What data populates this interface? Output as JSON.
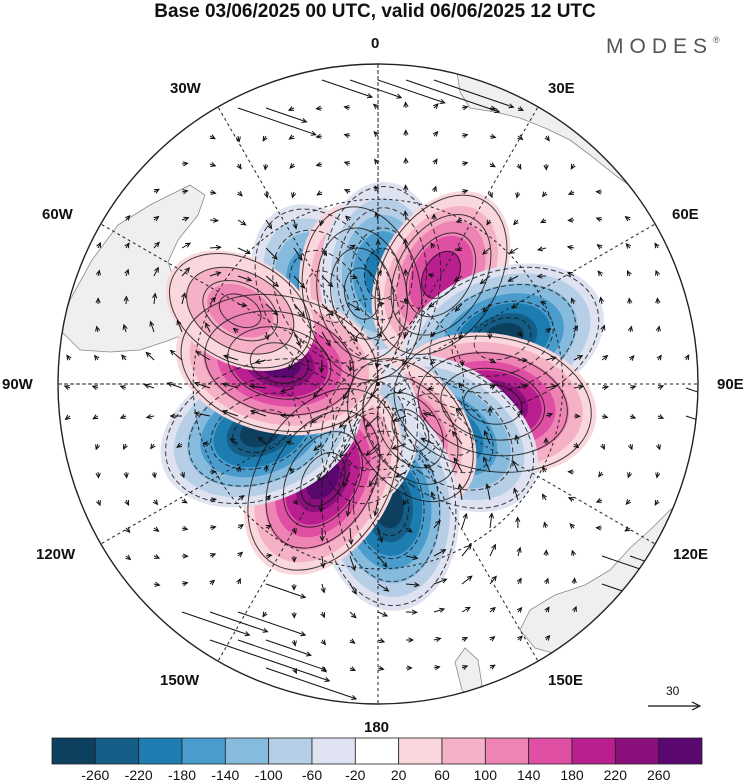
{
  "title": "Base 03/06/2025 00 UTC, valid 06/06/2025 12 UTC",
  "brand": "MODES",
  "brand_mark": "®",
  "longitude_labels": {
    "top": "0",
    "top_right": "30E",
    "right_upper": "60E",
    "right": "90E",
    "right_lower": "120E",
    "bottom_right": "150E",
    "bottom": "180",
    "bottom_left": "150W",
    "left_lower": "120W",
    "left": "90W",
    "left_upper": "60W",
    "top_left": "30W"
  },
  "reference_vector": {
    "label": "30",
    "magnitude": 30
  },
  "colorbar": {
    "tick_labels": [
      "-260",
      "-220",
      "-180",
      "-140",
      "-100",
      "-60",
      "-20",
      "20",
      "60",
      "100",
      "140",
      "180",
      "220",
      "260"
    ],
    "colors": [
      "#0d3f5e",
      "#145d87",
      "#1d7cb0",
      "#4a9ccd",
      "#86bbdd",
      "#b7cfe6",
      "#dfe2f0",
      "#ffffff",
      "#f9d7dc",
      "#f5b1c5",
      "#ee84b4",
      "#df4fa3",
      "#b91f8f",
      "#8a0f7d",
      "#5a0870"
    ]
  },
  "colors": {
    "land": "#efefef",
    "ocean": "#ffffff",
    "grid": "#222222"
  },
  "anomalies": [
    {
      "name": "neg-atlantic-south",
      "lat": -55,
      "lon": -30,
      "value": -240
    },
    {
      "name": "pos-atlantic-south",
      "lat": -58,
      "lon": -10,
      "value": 200
    },
    {
      "name": "neg-greenwich",
      "lat": -52,
      "lon": 2,
      "value": -200
    },
    {
      "name": "pos-africa-south",
      "lat": -47,
      "lon": 30,
      "value": 190
    },
    {
      "name": "neg-indian-west",
      "lat": -45,
      "lon": 70,
      "value": -270
    },
    {
      "name": "pos-indian-east",
      "lat": -50,
      "lon": 100,
      "value": 270
    },
    {
      "name": "neg-australia-south",
      "lat": -60,
      "lon": 125,
      "value": -240
    },
    {
      "name": "pos-tasman",
      "lat": -70,
      "lon": 145,
      "value": 150
    },
    {
      "name": "neg-pacific-west",
      "lat": -48,
      "lon": 175,
      "value": -270
    },
    {
      "name": "neg-ross",
      "lat": -72,
      "lon": -170,
      "value": -100
    },
    {
      "name": "pos-pacific-south",
      "lat": -52,
      "lon": -150,
      "value": 260
    },
    {
      "name": "neg-pacific-east",
      "lat": -47,
      "lon": -112,
      "value": -270
    },
    {
      "name": "pos-amundsen",
      "lat": -55,
      "lon": -78,
      "value": 270
    },
    {
      "name": "pos-drake",
      "lat": -38,
      "lon": -62,
      "value": 130
    }
  ]
}
